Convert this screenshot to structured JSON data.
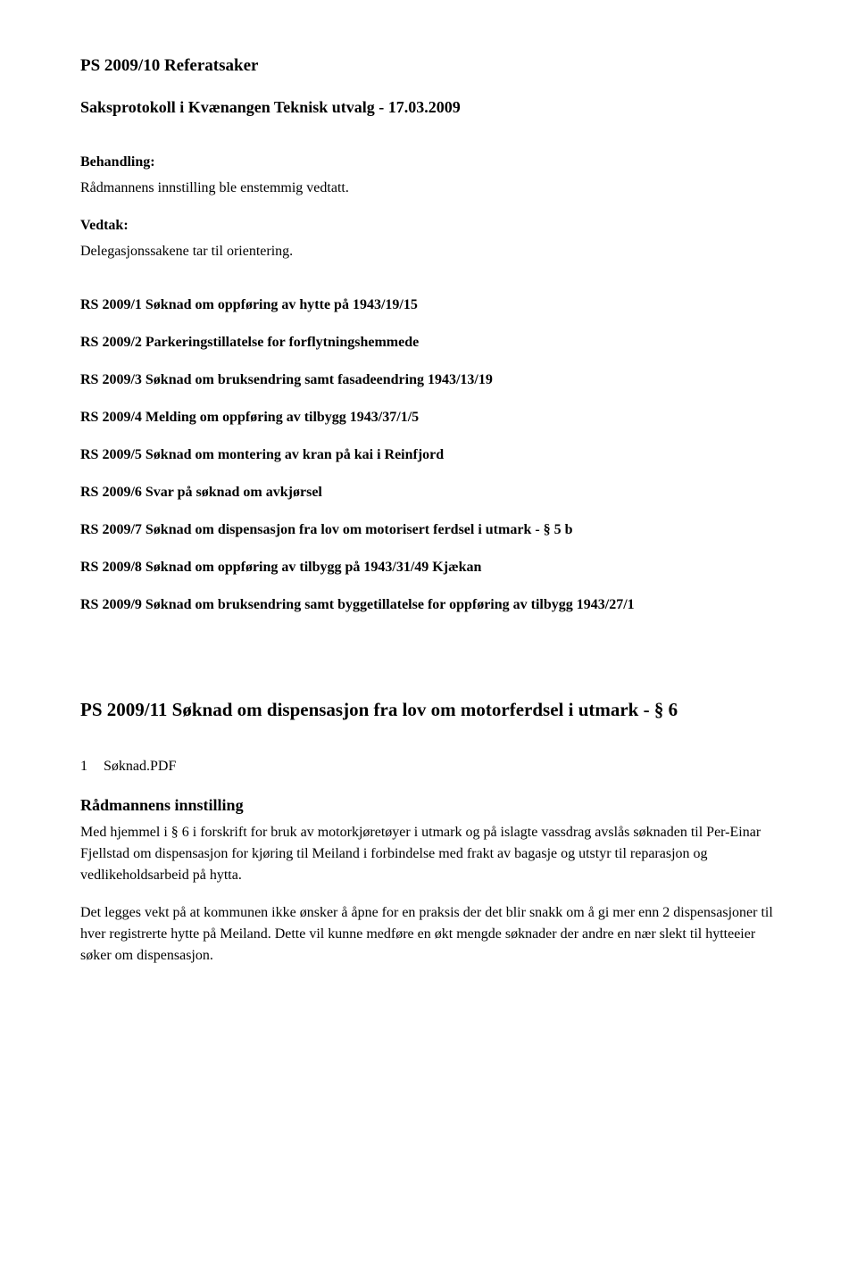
{
  "doc": {
    "heading1": "PS 2009/10 Referatsaker",
    "protocol_line": "Saksprotokoll i Kvænangen Teknisk utvalg - 17.03.2009",
    "behandling_label": "Behandling:",
    "behandling_text": "Rådmannens innstilling ble enstemmig vedtatt.",
    "vedtak_label": "Vedtak:",
    "vedtak_text": "Delegasjonssakene tar til orientering.",
    "rs": {
      "item1": "RS 2009/1 Søknad om oppføring av hytte på 1943/19/15",
      "item2": "RS 2009/2 Parkeringstillatelse for forflytningshemmede",
      "item3": "RS 2009/3 Søknad om bruksendring samt fasadeendring 1943/13/19",
      "item4": "RS 2009/4 Melding om oppføring av tilbygg 1943/37/1/5",
      "item5": "RS 2009/5 Søknad om montering av kran på kai i Reinfjord",
      "item6": "RS 2009/6 Svar på søknad om avkjørsel",
      "item7": "RS 2009/7 Søknad om dispensasjon fra lov om motorisert ferdsel i utmark - § 5 b",
      "item8": "RS 2009/8 Søknad om oppføring av tilbygg på 1943/31/49 Kjækan",
      "item9": "RS 2009/9 Søknad om bruksendring samt byggetillatelse for oppføring av tilbygg 1943/27/1"
    },
    "heading2": "PS 2009/11 Søknad om dispensasjon fra lov om motorferdsel i utmark - § 6",
    "attachment": {
      "num": "1",
      "file": "Søknad.PDF"
    },
    "innstilling_label": "Rådmannens innstilling",
    "para1": "Med hjemmel i § 6 i forskrift for bruk av motorkjøretøyer i utmark og på islagte vassdrag avslås søknaden til Per-Einar Fjellstad om dispensasjon for kjøring til Meiland i forbindelse med frakt av bagasje og utstyr til reparasjon og vedlikeholdsarbeid på hytta.",
    "para2": "Det legges vekt på at kommunen ikke ønsker å åpne for en praksis der det blir snakk om å gi mer enn 2 dispensasjoner til hver registrerte hytte på Meiland. Dette vil kunne medføre en økt mengde søknader der andre en nær slekt til hytteeier søker om dispensasjon."
  }
}
